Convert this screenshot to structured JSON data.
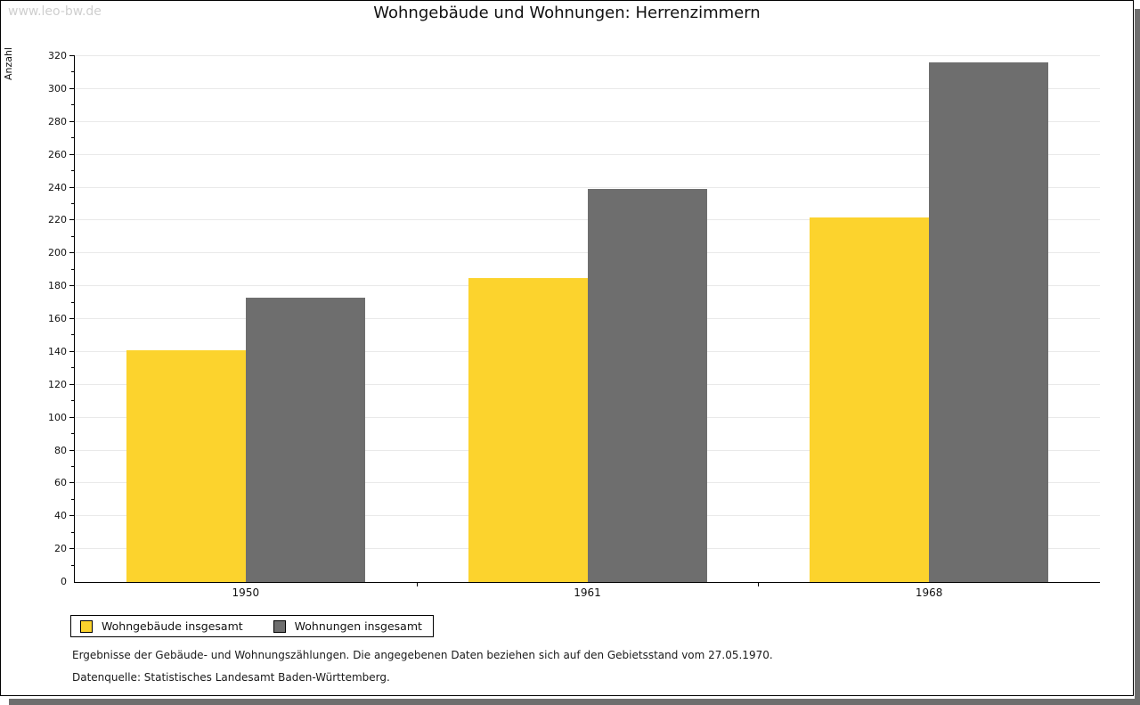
{
  "watermark": "www.leo-bw.de",
  "title": "Wohngebäude und Wohnungen: Herrenzimmern",
  "footer": {
    "line1": "Ergebnisse der Gebäude- und Wohnungszählungen. Die angegebenen Daten beziehen sich auf den Gebietsstand vom 27.05.1970.",
    "line2": "Datenquelle: Statistisches Landesamt Baden-Württemberg."
  },
  "colors": {
    "series_yellow": "#FCD32D",
    "series_gray": "#6E6E6E",
    "gridline": "#E9E9E9",
    "axis": "#000000",
    "watermark": "#CFCFCF",
    "shadow": "#6E6E6E"
  },
  "chart_data": {
    "type": "bar",
    "categories": [
      "1950",
      "1961",
      "1968"
    ],
    "series": [
      {
        "name": "Wohngebäude insgesamt",
        "color": "#FCD32D",
        "values": [
          141,
          185,
          222
        ]
      },
      {
        "name": "Wohnungen insgesamt",
        "color": "#6E6E6E",
        "values": [
          173,
          239,
          316
        ]
      }
    ],
    "title": "Wohngebäude und Wohnungen: Herrenzimmern",
    "xlabel": "",
    "ylabel": "Anzahl",
    "ylim": [
      0,
      320
    ],
    "ytick_major": 20,
    "ytick_minor": 10,
    "grid": "horizontal-major",
    "legend_position": "bottom-left"
  }
}
